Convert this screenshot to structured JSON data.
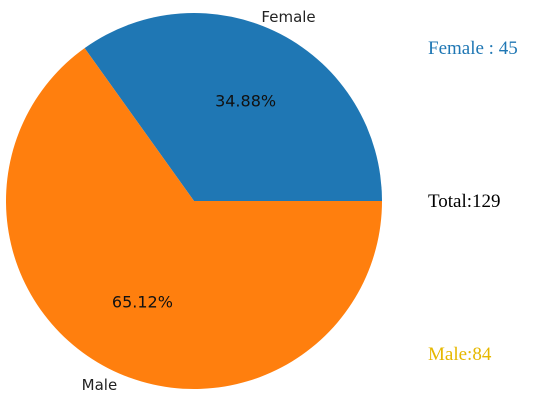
{
  "chart_data": {
    "type": "pie",
    "categories": [
      "Female",
      "Male"
    ],
    "values": [
      45,
      84
    ],
    "percent_labels": [
      "34.88%",
      "65.12%"
    ],
    "colors": [
      "#1f77b4",
      "#ff7f0e"
    ],
    "start_angle": "0 degrees (3 o'clock)",
    "direction": "counterclockwise"
  },
  "annotations": {
    "female": {
      "text": "Female : 45",
      "color": "#1f77b4"
    },
    "total": {
      "text": "Total:129",
      "color": "#000000"
    },
    "male": {
      "text": "Male:84",
      "color": "#e6b800"
    }
  }
}
